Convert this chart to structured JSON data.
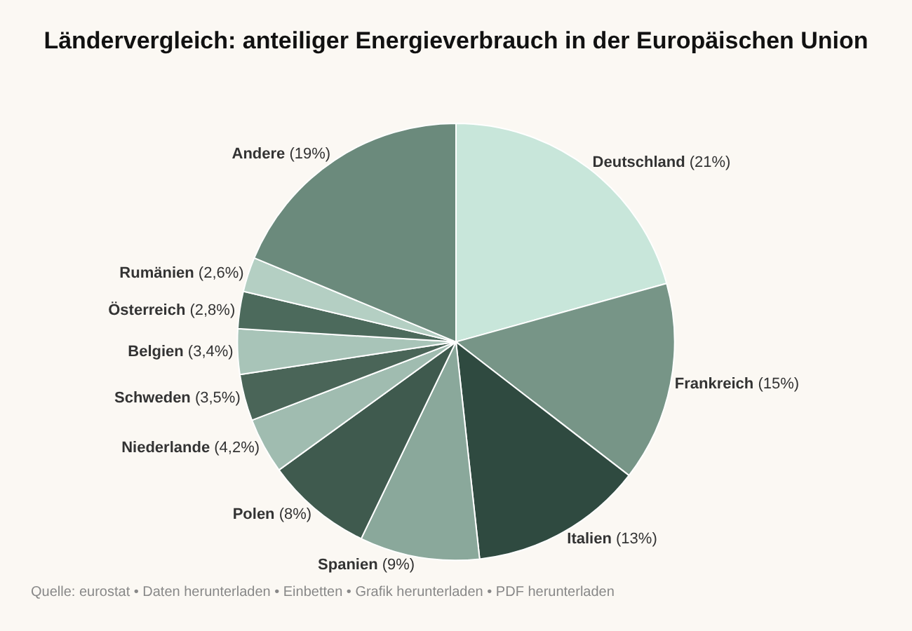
{
  "chart_data": {
    "type": "pie",
    "title": "Ländervergleich: anteiliger Energieverbrauch in der Europäischen Union",
    "categories": [
      "Deutschland",
      "Frankreich",
      "Italien",
      "Spanien",
      "Polen",
      "Niederlande",
      "Schweden",
      "Belgien",
      "Österreich",
      "Rumänien",
      "Andere"
    ],
    "values": [
      21,
      15,
      13,
      9,
      8,
      4.2,
      3.5,
      3.4,
      2.8,
      2.6,
      19
    ],
    "value_labels": [
      "(21%)",
      "(15%)",
      "(13%)",
      "(9%)",
      "(8%)",
      "(4,2%)",
      "(3,5%)",
      "(3,4%)",
      "(2,8%)",
      "(2,6%)",
      "(19%)"
    ],
    "colors": [
      "#c8e6da",
      "#779587",
      "#2f4a40",
      "#8aa89b",
      "#3f5a4e",
      "#a0bcb0",
      "#4a6558",
      "#a8c4b8",
      "#4c6a5c",
      "#b4cfc3",
      "#6b8a7c"
    ],
    "annotations": [
      "Quelle: eurostat • Daten herunterladen • Einbetten • Grafik herunterladen • PDF herunterladen"
    ]
  }
}
